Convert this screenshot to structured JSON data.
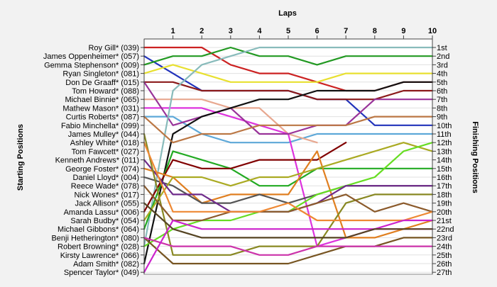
{
  "chart_data": {
    "type": "line",
    "title": "",
    "xlabel": "Laps",
    "ylabel_left": "Starting Positions",
    "ylabel_right": "Finishing Positions",
    "x": [
      0,
      1,
      2,
      3,
      4,
      5,
      6,
      7,
      8,
      9,
      10
    ],
    "x_tick_labels": [
      "1",
      "2",
      "3",
      "4",
      "5",
      "6",
      "7",
      "8",
      "9",
      "10"
    ],
    "y_reversed": true,
    "ylim": [
      1,
      27
    ],
    "start_labels": [
      "Roy Gill* (039)",
      "James Oppenheimer* (057)",
      "Gemma Stephenson* (009)",
      "Ryan Singleton* (081)",
      "Don De Graaff* (015)",
      "Tom Howard* (088)",
      "Michael Binnie* (065)",
      "Mathew Mason* (031)",
      "Curtis Roberts* (087)",
      "Fabio Minchella* (099)",
      "James Mulley* (044)",
      "Ashley White* (018)",
      "Tom Fawcett* (027)",
      "Kenneth Andrews* (011)",
      "George Foster* (074)",
      "Daniel Lloyd* (004)",
      "Reece Wade* (078)",
      "Nick Wones* (017)",
      "Jack Allison* (055)",
      "Amanda Lassu* (006)",
      "Sarah Budby* (054)",
      "Michael Gibbons* (064)",
      "Benji Hetherington* (080)",
      "Robert Browning* (028)",
      "Kirsty Lawrence* (066)",
      "Adam Smith* (082)",
      "Spencer Taylor* (049)"
    ],
    "finish_labels": [
      "1st",
      "2nd",
      "3rd",
      "4th",
      "5th",
      "6th",
      "7th",
      "8th",
      "9th",
      "10th",
      "11th",
      "12th",
      "13th",
      "14th",
      "15th",
      "16th",
      "17th",
      "18th",
      "19th",
      "20th",
      "21st",
      "22nd",
      "23rd",
      "24th",
      "25th",
      "26th",
      "27th"
    ],
    "grid": true,
    "series": [
      {
        "color": "#cc2222",
        "values": [
          1,
          1,
          1,
          3,
          4,
          4,
          5,
          6,
          6,
          5,
          5
        ]
      },
      {
        "color": "#2233bb",
        "values": [
          2,
          4,
          6,
          6,
          6,
          6,
          7,
          7,
          10,
          10,
          10
        ]
      },
      {
        "color": "#229922",
        "values": [
          3,
          2,
          2,
          1,
          2,
          2,
          3,
          2,
          2,
          2,
          2
        ]
      },
      {
        "color": "#e8e030",
        "values": [
          4,
          3,
          4,
          5,
          5,
          5,
          5,
          4,
          4,
          4,
          4
        ]
      },
      {
        "color": "#8b1a1a",
        "values": [
          5,
          5,
          6,
          6,
          6,
          6,
          7,
          7,
          7,
          6,
          6
        ]
      },
      {
        "color": "#5da8d8",
        "values": [
          9,
          9,
          11,
          12,
          12,
          12,
          11,
          11,
          11,
          11,
          11
        ]
      },
      {
        "color": "#e8a890",
        "values": [
          7,
          7,
          7,
          8,
          8,
          11,
          12,
          null,
          null,
          null,
          null
        ]
      },
      {
        "color": "#dd33dd",
        "values": [
          8,
          8,
          8,
          9,
          10,
          11,
          24,
          23,
          22,
          22,
          22
        ]
      },
      {
        "color": "#993399",
        "values": [
          5,
          10,
          9,
          8,
          11,
          11,
          10,
          10,
          7,
          7,
          7
        ]
      },
      {
        "color": "#88bbbb",
        "values": [
          24,
          6,
          3,
          2,
          1,
          1,
          1,
          1,
          1,
          1,
          1
        ]
      },
      {
        "color": "#111111",
        "values": [
          26,
          11,
          9,
          8,
          7,
          7,
          6,
          6,
          6,
          5,
          5
        ]
      },
      {
        "color": "#22aa22",
        "values": [
          22,
          13,
          14,
          15,
          17,
          17,
          15,
          15,
          15,
          15,
          15
        ]
      },
      {
        "color": "#800000",
        "values": [
          20,
          14,
          15,
          15,
          14,
          14,
          14,
          12,
          null,
          null,
          null
        ]
      },
      {
        "color": "#e07f20",
        "values": [
          15,
          16,
          19,
          18,
          18,
          18,
          13,
          23,
          23,
          22,
          21
        ]
      },
      {
        "color": "#555555",
        "values": [
          16,
          17,
          19,
          19,
          18,
          19,
          18,
          17,
          17,
          17,
          17
        ]
      },
      {
        "color": "#aaaa22",
        "values": [
          21,
          16,
          16,
          17,
          16,
          16,
          15,
          14,
          13,
          12,
          13
        ]
      },
      {
        "color": "#66dd22",
        "values": [
          24,
          22,
          21,
          21,
          20,
          20,
          18,
          17,
          16,
          13,
          12
        ]
      },
      {
        "color": "#bb7744",
        "values": [
          9,
          12,
          11,
          11,
          10,
          10,
          10,
          10,
          9,
          9,
          9
        ]
      },
      {
        "color": "#775522",
        "values": [
          23,
          26,
          26,
          26,
          26,
          26,
          25,
          24,
          24,
          23,
          23
        ]
      },
      {
        "color": "#6e2a8a",
        "values": [
          14,
          18,
          18,
          20,
          20,
          20,
          19,
          17,
          17,
          17,
          17
        ]
      },
      {
        "color": "#888822",
        "values": [
          11,
          25,
          25,
          25,
          24,
          24,
          24,
          19,
          18,
          18,
          18
        ]
      },
      {
        "color": "#8b5a2b",
        "values": [
          17,
          21,
          21,
          20,
          20,
          20,
          19,
          18,
          20,
          19,
          20
        ]
      },
      {
        "color": "#cc33aa",
        "values": [
          23,
          24,
          24,
          24,
          25,
          25,
          24,
          24,
          24,
          24,
          24
        ]
      },
      {
        "color": "#ee8833",
        "values": [
          12,
          20,
          20,
          20,
          20,
          19,
          21,
          21,
          21,
          21,
          20
        ]
      },
      {
        "color": "#cc22cc",
        "values": [
          27,
          21,
          22,
          22,
          22,
          22,
          22,
          22,
          22,
          21,
          21
        ]
      },
      {
        "color": "#554422",
        "values": [
          19,
          22,
          23,
          23,
          23,
          23,
          23,
          23,
          22,
          22,
          22
        ]
      }
    ]
  }
}
